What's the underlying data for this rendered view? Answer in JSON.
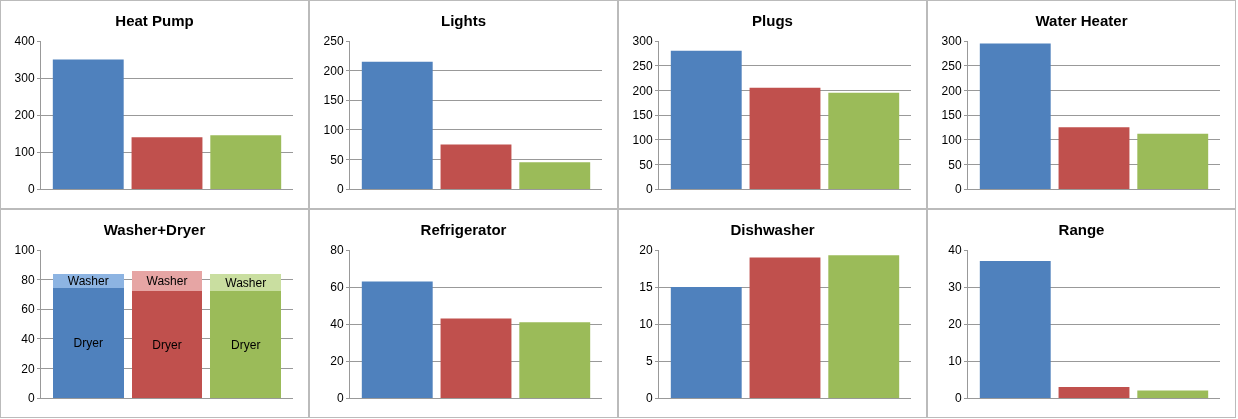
{
  "chart_data": [
    {
      "type": "bar",
      "title": "Heat Pump",
      "categories": [
        null,
        null,
        null
      ],
      "values": [
        350,
        140,
        145
      ],
      "colors": [
        "#4f81bd",
        "#c0504d",
        "#9bbb59"
      ],
      "ylim": [
        0,
        400
      ],
      "yticks": [
        0,
        100,
        200,
        300,
        400
      ],
      "grid": "y"
    },
    {
      "type": "bar",
      "title": "Lights",
      "categories": [
        null,
        null,
        null
      ],
      "values": [
        215,
        75,
        45
      ],
      "colors": [
        "#4f81bd",
        "#c0504d",
        "#9bbb59"
      ],
      "ylim": [
        0,
        250
      ],
      "yticks": [
        0,
        50,
        100,
        150,
        200,
        250
      ],
      "grid": "y"
    },
    {
      "type": "bar",
      "title": "Plugs",
      "categories": [
        null,
        null,
        null
      ],
      "values": [
        280,
        205,
        195
      ],
      "colors": [
        "#4f81bd",
        "#c0504d",
        "#9bbb59"
      ],
      "ylim": [
        0,
        300
      ],
      "yticks": [
        0,
        50,
        100,
        150,
        200,
        250,
        300
      ],
      "grid": "y"
    },
    {
      "type": "bar",
      "title": "Water Heater",
      "categories": [
        null,
        null,
        null
      ],
      "values": [
        295,
        125,
        112
      ],
      "colors": [
        "#4f81bd",
        "#c0504d",
        "#9bbb59"
      ],
      "ylim": [
        0,
        300
      ],
      "yticks": [
        0,
        50,
        100,
        150,
        200,
        250,
        300
      ],
      "grid": "y"
    },
    {
      "type": "bar",
      "title": "Washer+Dryer",
      "categories": [
        null,
        null,
        null
      ],
      "stacked": true,
      "series": [
        {
          "name": "Dryer",
          "colors": [
            "#4f81bd",
            "#c0504d",
            "#9bbb59"
          ],
          "values": [
            74,
            72,
            72
          ]
        },
        {
          "name": "Washer",
          "colors": [
            "#8db4e2",
            "#e6a5a4",
            "#c9dea0"
          ],
          "values": [
            10,
            14,
            12
          ]
        }
      ],
      "ylim": [
        0,
        100
      ],
      "yticks": [
        0,
        20,
        40,
        60,
        80,
        100
      ],
      "grid": "y"
    },
    {
      "type": "bar",
      "title": "Refrigerator",
      "categories": [
        null,
        null,
        null
      ],
      "values": [
        63,
        43,
        41
      ],
      "colors": [
        "#4f81bd",
        "#c0504d",
        "#9bbb59"
      ],
      "ylim": [
        0,
        80
      ],
      "yticks": [
        0,
        20,
        40,
        60,
        80
      ],
      "grid": "y"
    },
    {
      "type": "bar",
      "title": "Dishwasher",
      "categories": [
        null,
        null,
        null
      ],
      "values": [
        15,
        19,
        19.3
      ],
      "colors": [
        "#4f81bd",
        "#c0504d",
        "#9bbb59"
      ],
      "ylim": [
        0,
        20
      ],
      "yticks": [
        0,
        5,
        10,
        15,
        20
      ],
      "grid": "y"
    },
    {
      "type": "bar",
      "title": "Range",
      "categories": [
        null,
        null,
        null
      ],
      "values": [
        37,
        3,
        2
      ],
      "colors": [
        "#4f81bd",
        "#c0504d",
        "#9bbb59"
      ],
      "ylim": [
        0,
        40
      ],
      "yticks": [
        0,
        10,
        20,
        30,
        40
      ],
      "grid": "y"
    }
  ]
}
